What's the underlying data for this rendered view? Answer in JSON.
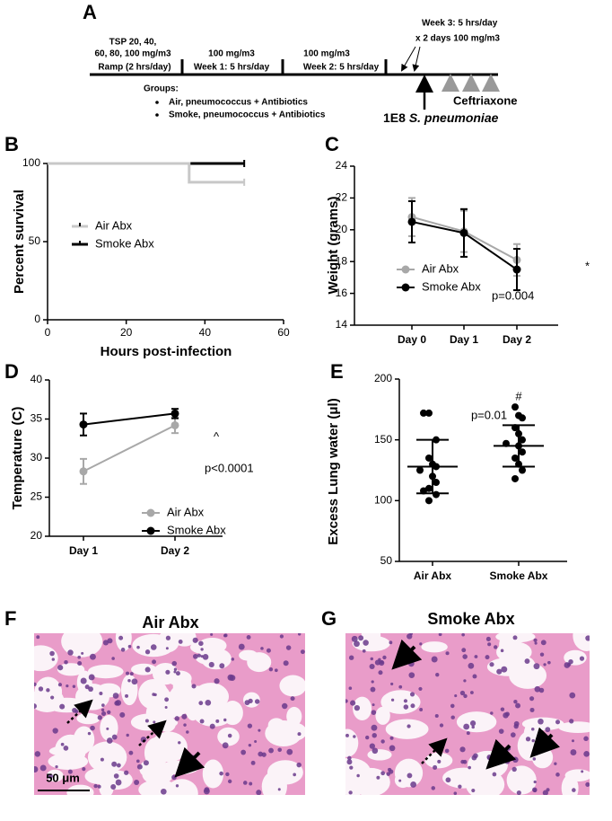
{
  "panel_a": {
    "letter": "A",
    "ramp_dose_1": "TSP 20, 40,",
    "ramp_dose_2": "60, 80, 100 mg/m3",
    "ramp": "Ramp (2 hrs/day)",
    "week1_dose": "100 mg/m3",
    "week1": "Week 1: 5 hrs/day",
    "week2_dose": "100 mg/m3",
    "week2": "Week 2: 5 hrs/day",
    "week3_1": "Week 3: 5 hrs/day",
    "week3_2": "x 2 days 100 mg/m3",
    "groups_title": "Groups:",
    "groups": [
      "Air, pneumococcus + Antibiotics",
      "Smoke, pneumococcus + Antibiotics"
    ],
    "antibiotic": "Ceftriaxone",
    "infection_dose": "1E8",
    "infection_organism": "S. pneumoniae"
  },
  "chart_data": [
    {
      "type": "step",
      "panel_label": "B",
      "ylabel": "Percent survival",
      "xlabel": "Hours post-infection",
      "xlim": [
        0,
        60
      ],
      "xticks": [
        0,
        20,
        40,
        60
      ],
      "ylim": [
        0,
        100
      ],
      "yticks": [
        0,
        50,
        100
      ],
      "series": [
        {
          "name": "Smoke Abx",
          "color": "#000000",
          "x": [
            0,
            50
          ],
          "values": [
            100,
            100
          ]
        },
        {
          "name": "Air Abx",
          "color": "#c8c8c8",
          "x": [
            0,
            36,
            50
          ],
          "values": [
            100,
            88,
            88
          ]
        }
      ]
    },
    {
      "type": "line",
      "panel_label": "C",
      "ylabel": "Weight (grams)",
      "categories": [
        "Day 0",
        "Day 1",
        "Day 2"
      ],
      "ylim": [
        14,
        24
      ],
      "yticks": [
        14,
        16,
        18,
        20,
        22,
        24
      ],
      "series": [
        {
          "name": "Air Abx",
          "color": "#a8a8a8",
          "values": [
            20.8,
            19.9,
            18.1
          ],
          "errors": [
            1.2,
            1.3,
            1.0
          ]
        },
        {
          "name": "Smoke Abx",
          "color": "#000000",
          "values": [
            20.5,
            19.8,
            17.5
          ],
          "errors": [
            1.3,
            1.5,
            1.3
          ]
        }
      ],
      "annotations": [
        "*",
        "p=0.004"
      ]
    },
    {
      "type": "line",
      "panel_label": "D",
      "ylabel": "Temperature (C)",
      "categories": [
        "Day 1",
        "Day 2"
      ],
      "ylim": [
        20,
        40
      ],
      "yticks": [
        20,
        25,
        30,
        35,
        40
      ],
      "series": [
        {
          "name": "Air Abx",
          "color": "#a8a8a8",
          "values": [
            28.3,
            34.2
          ],
          "errors": [
            1.6,
            1.0
          ]
        },
        {
          "name": "Smoke Abx",
          "color": "#000000",
          "values": [
            34.3,
            35.7
          ],
          "errors": [
            1.4,
            0.6
          ]
        }
      ],
      "annotations": [
        "^",
        "p<0.0001"
      ]
    },
    {
      "type": "dot",
      "panel_label": "E",
      "ylabel": "Excess Lung water (μl)",
      "categories": [
        "Air Abx",
        "Smoke Abx"
      ],
      "ylim": [
        50,
        200
      ],
      "yticks": [
        50,
        100,
        150,
        200
      ],
      "points": [
        [
          172,
          172,
          150,
          135,
          130,
          128,
          125,
          120,
          115,
          110,
          108,
          105,
          100
        ],
        [
          177,
          170,
          168,
          160,
          155,
          150,
          147,
          145,
          140,
          135,
          130,
          125,
          118
        ]
      ],
      "mean": [
        128,
        145
      ],
      "sd": [
        22,
        17
      ],
      "color": "#000000",
      "annotations": [
        "p=0.01",
        "#"
      ]
    }
  ],
  "panel_f": {
    "letter": "F",
    "title": "Air Abx",
    "scale_bar": "50 μm"
  },
  "panel_g": {
    "letter": "G",
    "title": "Smoke Abx"
  }
}
